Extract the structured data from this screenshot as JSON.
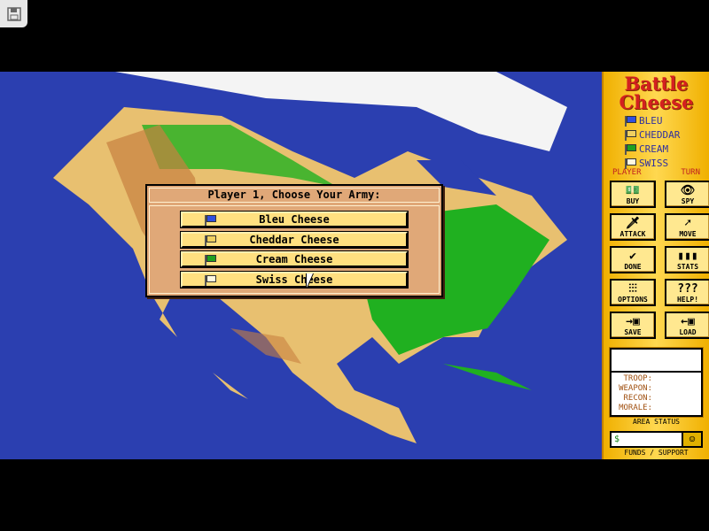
{
  "game": {
    "title_line1": "Battle",
    "title_line2": "Cheese"
  },
  "players": [
    {
      "name": "BLEU",
      "color": "#3050e0"
    },
    {
      "name": "CHEDDAR",
      "color": "#f0d060"
    },
    {
      "name": "CREAM",
      "color": "#20a020"
    },
    {
      "name": "SWISS",
      "color": "#fff8e0"
    }
  ],
  "player_turn": {
    "left": "PLAYER",
    "right": "TURN"
  },
  "buttons": [
    {
      "label": "BUY",
      "icon": "money-icon",
      "glyph": "💵"
    },
    {
      "label": "SPY",
      "icon": "eye-icon",
      "glyph": "👁"
    },
    {
      "label": "ATTACK",
      "icon": "sword-icon",
      "glyph": "🗡"
    },
    {
      "label": "MOVE",
      "icon": "move-cheese-icon",
      "glyph": "➚"
    },
    {
      "label": "DONE",
      "icon": "checkmark-icon",
      "glyph": "✔"
    },
    {
      "label": "STATS",
      "icon": "bar-chart-icon",
      "glyph": "▮▮▮"
    },
    {
      "label": "OPTIONS",
      "icon": "sliders-icon",
      "glyph": "⫶⫶⫶"
    },
    {
      "label": "HELP!",
      "icon": "question-icon",
      "glyph": "???"
    },
    {
      "label": "SAVE",
      "icon": "floppy-save-icon",
      "glyph": "→▣"
    },
    {
      "label": "LOAD",
      "icon": "floppy-load-icon",
      "glyph": "←▣"
    }
  ],
  "area_status": {
    "troop": "TROOP:",
    "weapon": "WEAPON:",
    "recon": "RECON:",
    "morale": "MORALE:",
    "caption": "AREA STATUS"
  },
  "funds": {
    "value": "$",
    "caption": "FUNDS / SUPPORT"
  },
  "dialog": {
    "title": "Player 1, Choose Your Army:",
    "options": [
      {
        "label": "Bleu Cheese",
        "color": "#3050e0"
      },
      {
        "label": "Cheddar Cheese",
        "color": "#f0d060"
      },
      {
        "label": "Cream Cheese",
        "color": "#20a020"
      },
      {
        "label": "Swiss Cheese",
        "color": "#fff8e0"
      }
    ]
  },
  "colors": {
    "ocean": "#2b3fb0",
    "land": "#e8c070",
    "forest": "#20b020",
    "panel": "#ffd040"
  }
}
